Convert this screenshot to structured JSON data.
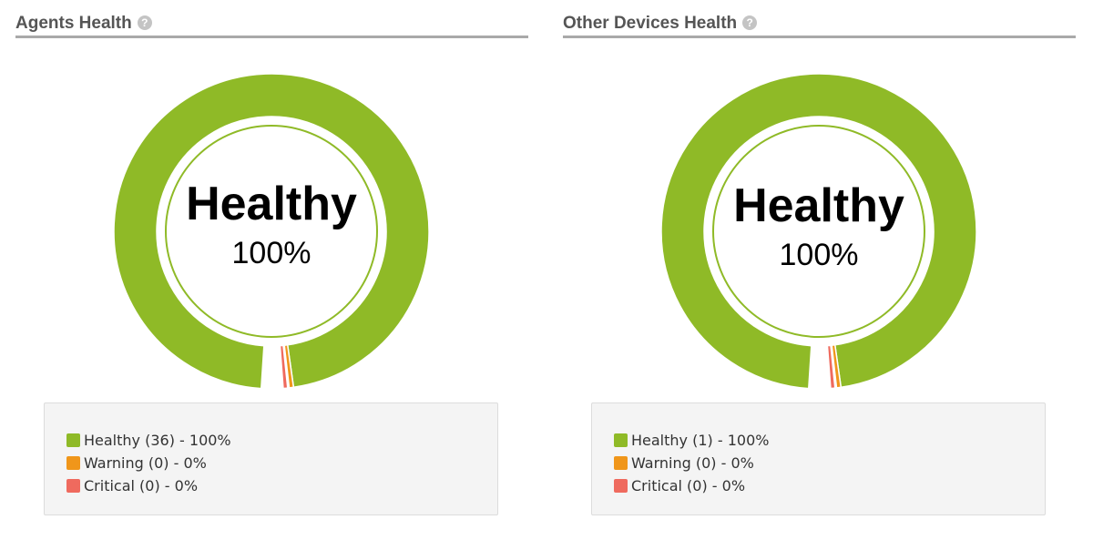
{
  "colors": {
    "healthy": "#8fba27",
    "warning": "#f0961a",
    "critical": "#ef6a5e"
  },
  "chart_data": [
    {
      "type": "pie",
      "title": "Agents Health",
      "help_icon": "question-mark-icon",
      "center_label": "Healthy",
      "center_value": "100%",
      "categories": [
        "Healthy",
        "Warning",
        "Critical"
      ],
      "values": [
        36,
        0,
        0
      ],
      "percentages": [
        100,
        0,
        0
      ],
      "legend": [
        {
          "label": "Healthy (36) - 100%",
          "color": "#8fba27"
        },
        {
          "label": "Warning (0) - 0%",
          "color": "#f0961a"
        },
        {
          "label": "Critical (0) - 0%",
          "color": "#ef6a5e"
        }
      ],
      "legend_position": "bottom"
    },
    {
      "type": "pie",
      "title": "Other Devices Health",
      "help_icon": "question-mark-icon",
      "center_label": "Healthy",
      "center_value": "100%",
      "categories": [
        "Healthy",
        "Warning",
        "Critical"
      ],
      "values": [
        1,
        0,
        0
      ],
      "percentages": [
        100,
        0,
        0
      ],
      "legend": [
        {
          "label": "Healthy (1) - 100%",
          "color": "#8fba27"
        },
        {
          "label": "Warning (0) - 0%",
          "color": "#f0961a"
        },
        {
          "label": "Critical (0) - 0%",
          "color": "#ef6a5e"
        }
      ],
      "legend_position": "bottom"
    }
  ]
}
